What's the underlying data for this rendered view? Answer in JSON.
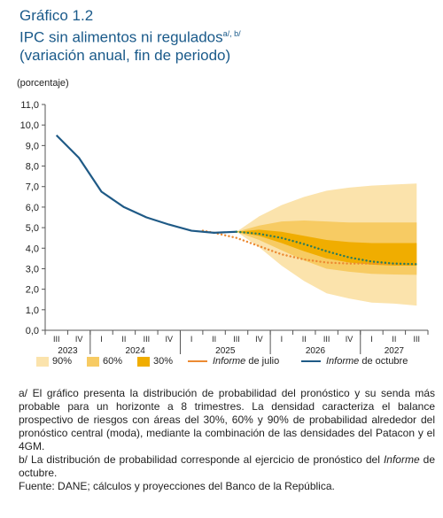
{
  "title": {
    "line1": "Gráfico 1.2",
    "line2": "IPC sin alimentos ni regulados",
    "line2_sup": "a/, b/",
    "line3": "(variación anual, fin de periodo)"
  },
  "colors": {
    "title": "#1a5a8a",
    "band90": "#fbe3ac",
    "band60": "#f7cb63",
    "band30": "#f0ad00",
    "october": "#1f5a86",
    "october_forecast": "#2e7d5a",
    "july": "#ec8a32"
  },
  "legend": {
    "b90": "90%",
    "b60": "60%",
    "b30": "30%",
    "july_italic": "Informe",
    "july_rest": " de julio",
    "oct_italic": "Informe",
    "oct_rest": " de octubre"
  },
  "chart_data": {
    "type": "area",
    "ylabel": "(porcentaje)",
    "ylim": [
      0,
      11
    ],
    "yticks": [
      "0,0",
      "1,0",
      "2,0",
      "3,0",
      "4,0",
      "5,0",
      "6,0",
      "7,0",
      "8,0",
      "9,0",
      "10,0",
      "11,0"
    ],
    "grid": false,
    "quarters": [
      "III",
      "IV",
      "I",
      "II",
      "III",
      "IV",
      "I",
      "II",
      "III",
      "IV",
      "I",
      "II",
      "III",
      "IV",
      "I",
      "II",
      "III"
    ],
    "years": [
      {
        "label": "2023",
        "start": 0,
        "end": 1
      },
      {
        "label": "2024",
        "start": 2,
        "end": 5
      },
      {
        "label": "2025",
        "start": 6,
        "end": 9
      },
      {
        "label": "2026",
        "start": 10,
        "end": 13
      },
      {
        "label": "2027",
        "start": 14,
        "end": 16
      }
    ],
    "series": [
      {
        "name": "Informe de octubre",
        "style": "solid",
        "points": [
          [
            0,
            9.5
          ],
          [
            1,
            8.4
          ],
          [
            2,
            6.75
          ],
          [
            3,
            6.0
          ],
          [
            4,
            5.5
          ],
          [
            5,
            5.15
          ],
          [
            6,
            4.85
          ],
          [
            7,
            4.75
          ],
          [
            8,
            4.8
          ]
        ]
      },
      {
        "name": "Informe de octubre",
        "style": "dotted",
        "points": [
          [
            8,
            4.8
          ],
          [
            9,
            4.7
          ],
          [
            10,
            4.5
          ],
          [
            11,
            4.2
          ],
          [
            12,
            3.85
          ],
          [
            13,
            3.55
          ],
          [
            14,
            3.35
          ],
          [
            15,
            3.25
          ],
          [
            16,
            3.22
          ]
        ]
      },
      {
        "name": "Informe de julio",
        "style": "dotted",
        "points": [
          [
            6.5,
            4.85
          ],
          [
            7,
            4.75
          ],
          [
            8,
            4.5
          ],
          [
            9,
            4.1
          ],
          [
            10,
            3.7
          ],
          [
            11,
            3.45
          ],
          [
            12,
            3.3
          ],
          [
            13,
            3.25
          ],
          [
            14,
            3.25
          ],
          [
            15,
            3.23
          ],
          [
            16,
            3.22
          ]
        ]
      }
    ],
    "bands": {
      "x": [
        8,
        9,
        10,
        11,
        12,
        13,
        14,
        15,
        16
      ],
      "b90": {
        "upper": [
          4.8,
          5.55,
          6.1,
          6.5,
          6.8,
          6.95,
          7.05,
          7.1,
          7.15
        ],
        "lower": [
          4.8,
          4.05,
          3.15,
          2.4,
          1.8,
          1.55,
          1.35,
          1.3,
          1.2
        ]
      },
      "b60": {
        "upper": [
          4.8,
          5.1,
          5.3,
          5.35,
          5.3,
          5.25,
          5.25,
          5.25,
          5.25
        ],
        "lower": [
          4.8,
          4.4,
          3.9,
          3.4,
          3.0,
          2.85,
          2.75,
          2.72,
          2.7
        ]
      },
      "b30": {
        "upper": [
          4.8,
          4.9,
          4.8,
          4.6,
          4.4,
          4.3,
          4.25,
          4.25,
          4.25
        ],
        "lower": [
          4.8,
          4.6,
          4.25,
          3.85,
          3.5,
          3.3,
          3.2,
          3.15,
          3.15
        ]
      }
    }
  },
  "notes": {
    "a": "a/ El gráfico presenta la distribución de probabilidad del pronóstico y su senda más probable para un horizonte a 8 trimestres. La densidad caracteriza el balance prospectivo de riesgos con áreas del 30%, 60% y 90% de probabilidad alrededor del pronóstico central (moda), mediante la combinación de las densidades del Patacon y el 4GM.",
    "b_pre": "b/ La distribución de probabilidad corresponde al ejercicio de pronóstico del ",
    "b_italic": "Informe",
    "b_post": " de octubre.",
    "source": "Fuente: DANE; cálculos y proyecciones del Banco de la República."
  }
}
